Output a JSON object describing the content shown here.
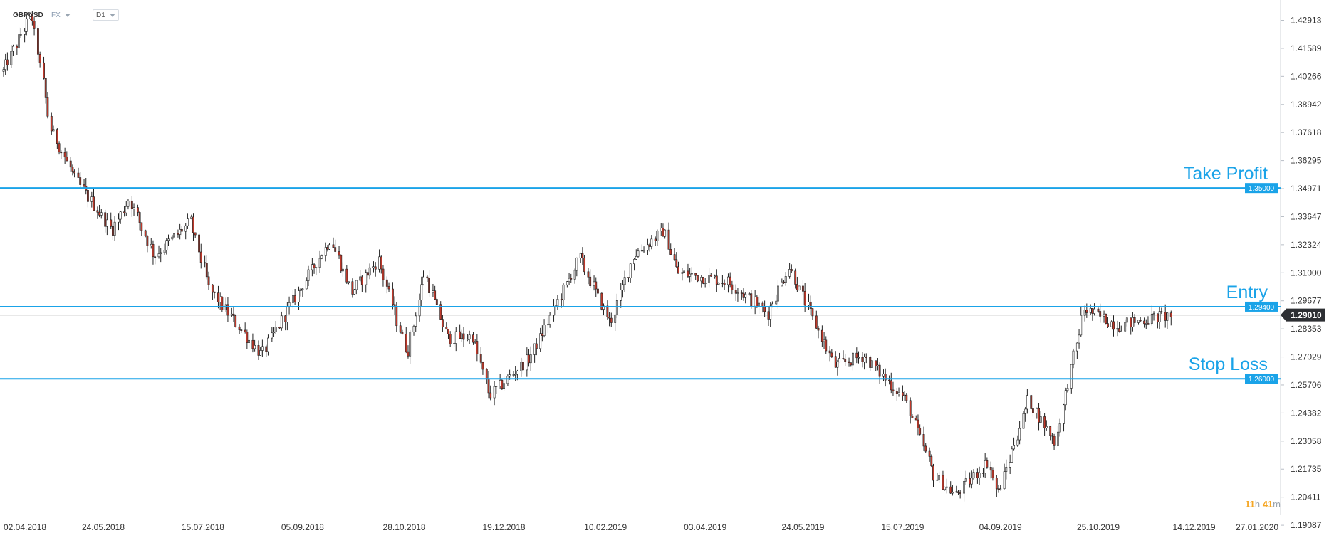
{
  "header": {
    "symbol": "GBPUSD",
    "market": "FX",
    "timeframe": "D1"
  },
  "timer": {
    "hours": "11",
    "hours_unit": "h",
    "minutes": "41",
    "minutes_unit": "m"
  },
  "colors": {
    "level_line": "#1aa3e8",
    "level_label": "#1aa3e8",
    "current_price_bg": "#2d2f33",
    "up_candle": "#ffffff",
    "down_candle": "#c0392b",
    "wick": "#222222"
  },
  "chart_data": {
    "type": "candlestick",
    "instrument": "GBPUSD",
    "y_axis": {
      "ticks": [
        "1.42913",
        "1.41589",
        "1.40266",
        "1.38942",
        "1.37618",
        "1.36295",
        "1.34971",
        "1.33647",
        "1.32324",
        "1.31000",
        "1.29677",
        "1.28353",
        "1.27029",
        "1.25706",
        "1.24382",
        "1.23058",
        "1.21735",
        "1.20411",
        "1.19087"
      ],
      "range": [
        1.1909,
        1.434
      ]
    },
    "x_axis": {
      "ticks": [
        "02.04.2018",
        "24.05.2018",
        "15.07.2018",
        "05.09.2018",
        "28.10.2018",
        "19.12.2018",
        "10.02.2019",
        "03.04.2019",
        "24.05.2019",
        "15.07.2019",
        "04.09.2019",
        "25.10.2019",
        "14.12.2019",
        "27.01.2020"
      ],
      "range": [
        "2018-04-02",
        "2020-01-27"
      ]
    },
    "levels": [
      {
        "label": "Take Profit",
        "price": 1.35,
        "price_label": "1.35000"
      },
      {
        "label": "Entry",
        "price": 1.294,
        "price_label": "1.29400"
      },
      {
        "label": "Stop Loss",
        "price": 1.26,
        "price_label": "1.26000"
      }
    ],
    "current_price": {
      "price": 1.2901,
      "label": "1.29010"
    },
    "close_path": [
      [
        "2018-04-02",
        1.405
      ],
      [
        "2018-04-17",
        1.432
      ],
      [
        "2018-04-27",
        1.378
      ],
      [
        "2018-05-10",
        1.354
      ],
      [
        "2018-05-29",
        1.33
      ],
      [
        "2018-06-07",
        1.345
      ],
      [
        "2018-06-20",
        1.318
      ],
      [
        "2018-07-09",
        1.334
      ],
      [
        "2018-07-19",
        1.302
      ],
      [
        "2018-08-15",
        1.271
      ],
      [
        "2018-08-31",
        1.296
      ],
      [
        "2018-09-20",
        1.326
      ],
      [
        "2018-10-01",
        1.301
      ],
      [
        "2018-10-15",
        1.316
      ],
      [
        "2018-10-30",
        1.272
      ],
      [
        "2018-11-08",
        1.31
      ],
      [
        "2018-11-20",
        1.279
      ],
      [
        "2018-12-03",
        1.28
      ],
      [
        "2018-12-12",
        1.252
      ],
      [
        "2019-01-02",
        1.27
      ],
      [
        "2019-01-28",
        1.317
      ],
      [
        "2019-02-13",
        1.286
      ],
      [
        "2019-02-25",
        1.318
      ],
      [
        "2019-03-13",
        1.33
      ],
      [
        "2019-03-20",
        1.31
      ],
      [
        "2019-04-15",
        1.306
      ],
      [
        "2019-05-06",
        1.291
      ],
      [
        "2019-05-17",
        1.313
      ],
      [
        "2019-06-10",
        1.266
      ],
      [
        "2019-06-25",
        1.271
      ],
      [
        "2019-07-17",
        1.25
      ],
      [
        "2019-08-01",
        1.214
      ],
      [
        "2019-08-12",
        1.205
      ],
      [
        "2019-08-29",
        1.221
      ],
      [
        "2019-09-03",
        1.205
      ],
      [
        "2019-09-19",
        1.25
      ],
      [
        "2019-10-03",
        1.23
      ],
      [
        "2019-10-18",
        1.293
      ],
      [
        "2019-11-05",
        1.285
      ],
      [
        "2019-11-14",
        1.287
      ],
      [
        "2019-11-25",
        1.289
      ],
      [
        "2019-12-03",
        1.29
      ]
    ]
  }
}
